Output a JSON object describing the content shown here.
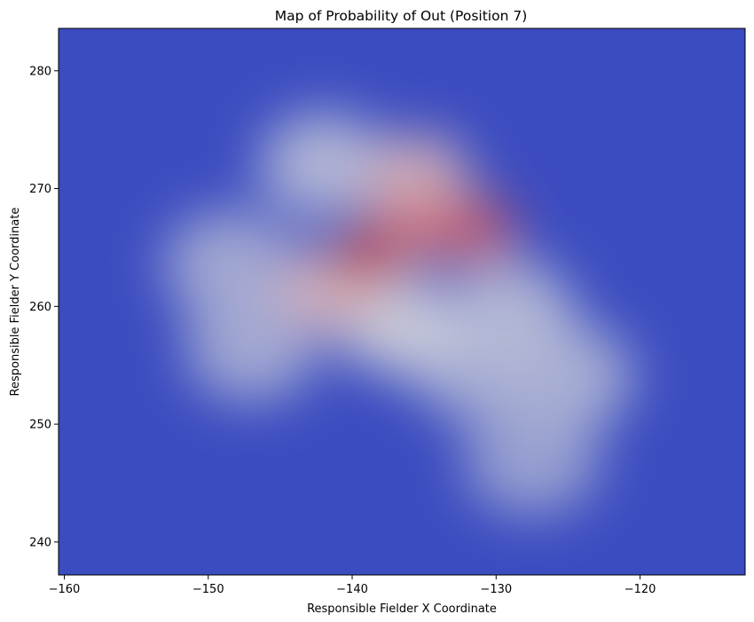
{
  "chart_data": {
    "type": "heatmap",
    "title": "Map of Probability of Out (Position 7)",
    "xlabel": "Responsible Fielder X Coordinate",
    "ylabel": "Responsible Fielder Y Coordinate",
    "xlim": [
      -160.4,
      -112.7
    ],
    "ylim": [
      237.2,
      283.6
    ],
    "xticks": [
      -160,
      -150,
      -140,
      -130,
      -120
    ],
    "yticks": [
      240,
      250,
      260,
      270,
      280
    ],
    "colormap": "coolwarm",
    "colors": {
      "low": "#3b4cc0",
      "mid": "#dddddd",
      "high": "#b40426"
    },
    "grid": false,
    "hotspots": [
      {
        "x": -139.0,
        "y": 264.3,
        "value": 1.0
      },
      {
        "x": -136.0,
        "y": 266.5,
        "value": 0.72
      },
      {
        "x": -131.5,
        "y": 266.5,
        "value": 0.8
      },
      {
        "x": -135.5,
        "y": 271.0,
        "value": 0.6
      },
      {
        "x": -141.5,
        "y": 261.5,
        "value": 0.6
      },
      {
        "x": -137.0,
        "y": 258.5,
        "value": 0.45
      },
      {
        "x": -148.5,
        "y": 263.5,
        "value": 0.33
      },
      {
        "x": -147.0,
        "y": 256.5,
        "value": 0.33
      },
      {
        "x": -125.0,
        "y": 254.0,
        "value": 0.35
      },
      {
        "x": -127.5,
        "y": 247.0,
        "value": 0.3
      },
      {
        "x": -131.5,
        "y": 255.0,
        "value": 0.35
      },
      {
        "x": -142.0,
        "y": 272.0,
        "value": 0.38
      },
      {
        "x": -129.0,
        "y": 259.5,
        "value": 0.38
      }
    ]
  }
}
